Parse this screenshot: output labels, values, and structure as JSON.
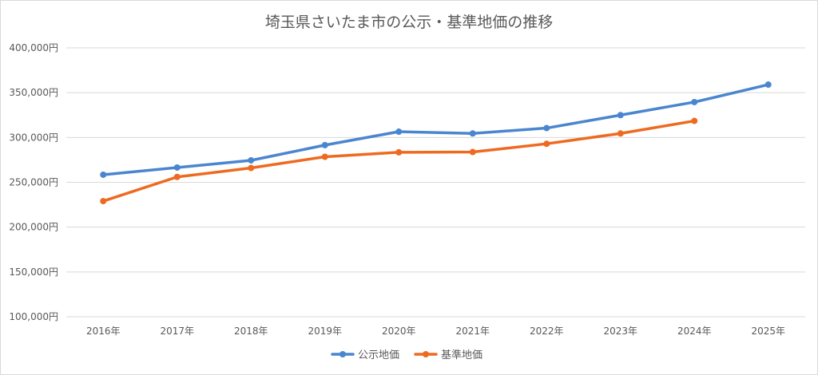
{
  "chart_data": {
    "type": "line",
    "title": "埼玉県さいたま市の公示・基準地価の推移",
    "categories": [
      "2016年",
      "2017年",
      "2018年",
      "2019年",
      "2020年",
      "2021年",
      "2022年",
      "2023年",
      "2024年",
      "2025年"
    ],
    "series": [
      {
        "name": "公示地価",
        "color": "#4a86cf",
        "values": [
          258500,
          266500,
          274500,
          291500,
          306500,
          304500,
          310500,
          325000,
          339500,
          359000
        ]
      },
      {
        "name": "基準地価",
        "color": "#ee6a20",
        "values": [
          229000,
          256000,
          266000,
          278500,
          283500,
          283800,
          293000,
          304500,
          318500,
          null
        ]
      }
    ],
    "y_ticks": [
      "100,000円",
      "150,000円",
      "200,000円",
      "250,000円",
      "300,000円",
      "350,000円",
      "400,000円"
    ],
    "ylim": [
      100000,
      400000
    ],
    "grid": true,
    "legend_position": "bottom"
  }
}
